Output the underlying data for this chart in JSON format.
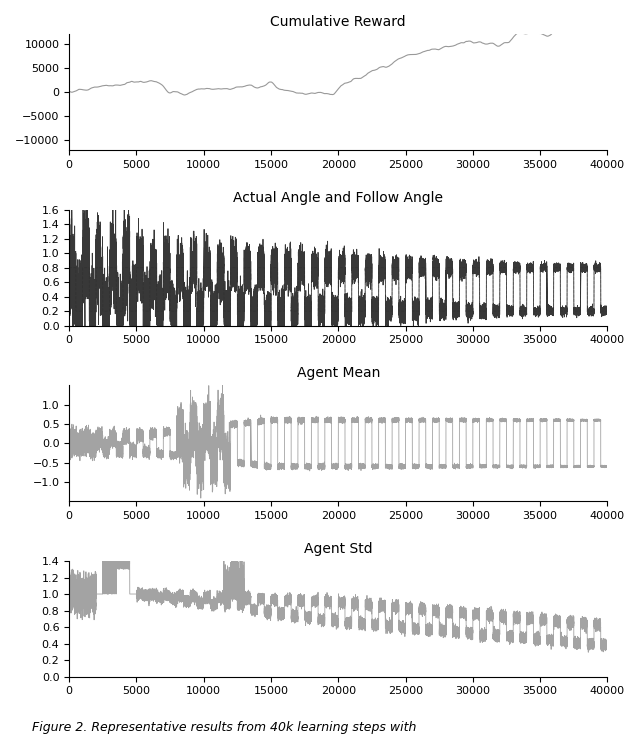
{
  "title1": "Cumulative Reward",
  "title2": "Actual Angle and Follow Angle",
  "title3": "Agent Mean",
  "title4": "Agent Std",
  "xlabel": "",
  "xlim": [
    0,
    40000
  ],
  "ylim1": [
    -12000,
    12000
  ],
  "ylim2": [
    0.0,
    1.6
  ],
  "ylim3": [
    -1.5,
    1.5
  ],
  "ylim4": [
    0.0,
    1.4
  ],
  "line_color": "#999999",
  "line_color2_solid": "#333333",
  "line_color2_dashed": "#aaaaaa",
  "caption": "Figure 2. Representative results from 40k learning steps with",
  "n_points": 40000,
  "seed": 42
}
